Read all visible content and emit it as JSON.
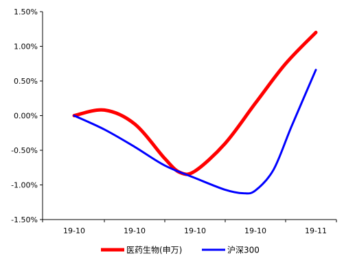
{
  "chart_data": {
    "type": "line",
    "categories": [
      "19-10",
      "19-10",
      "19-10",
      "19-10",
      "19-11"
    ],
    "y_ticks": [
      "1.50%",
      "1.00%",
      "0.50%",
      "0.00%",
      "-0.50%",
      "-1.00%",
      "-1.50%"
    ],
    "ylim": [
      -1.5,
      1.5
    ],
    "grid": false,
    "legend_position": "bottom",
    "series": [
      {
        "name": "医药生物(申万)",
        "color": "#ff0000",
        "points": [
          [
            0,
            0.0
          ],
          [
            0.5,
            0.08
          ],
          [
            1.0,
            -0.12
          ],
          [
            1.5,
            -0.62
          ],
          [
            1.75,
            -0.82
          ],
          [
            2.0,
            -0.8
          ],
          [
            2.5,
            -0.4
          ],
          [
            3.0,
            0.18
          ],
          [
            3.5,
            0.75
          ],
          [
            4.0,
            1.2
          ]
        ]
      },
      {
        "name": "沪深300",
        "color": "#0000ff",
        "points": [
          [
            0,
            0.0
          ],
          [
            0.5,
            -0.2
          ],
          [
            1.0,
            -0.45
          ],
          [
            1.5,
            -0.72
          ],
          [
            2.0,
            -0.9
          ],
          [
            2.5,
            -1.07
          ],
          [
            2.8,
            -1.12
          ],
          [
            3.0,
            -1.08
          ],
          [
            3.3,
            -0.78
          ],
          [
            3.6,
            -0.15
          ],
          [
            4.0,
            0.66
          ]
        ]
      }
    ]
  }
}
